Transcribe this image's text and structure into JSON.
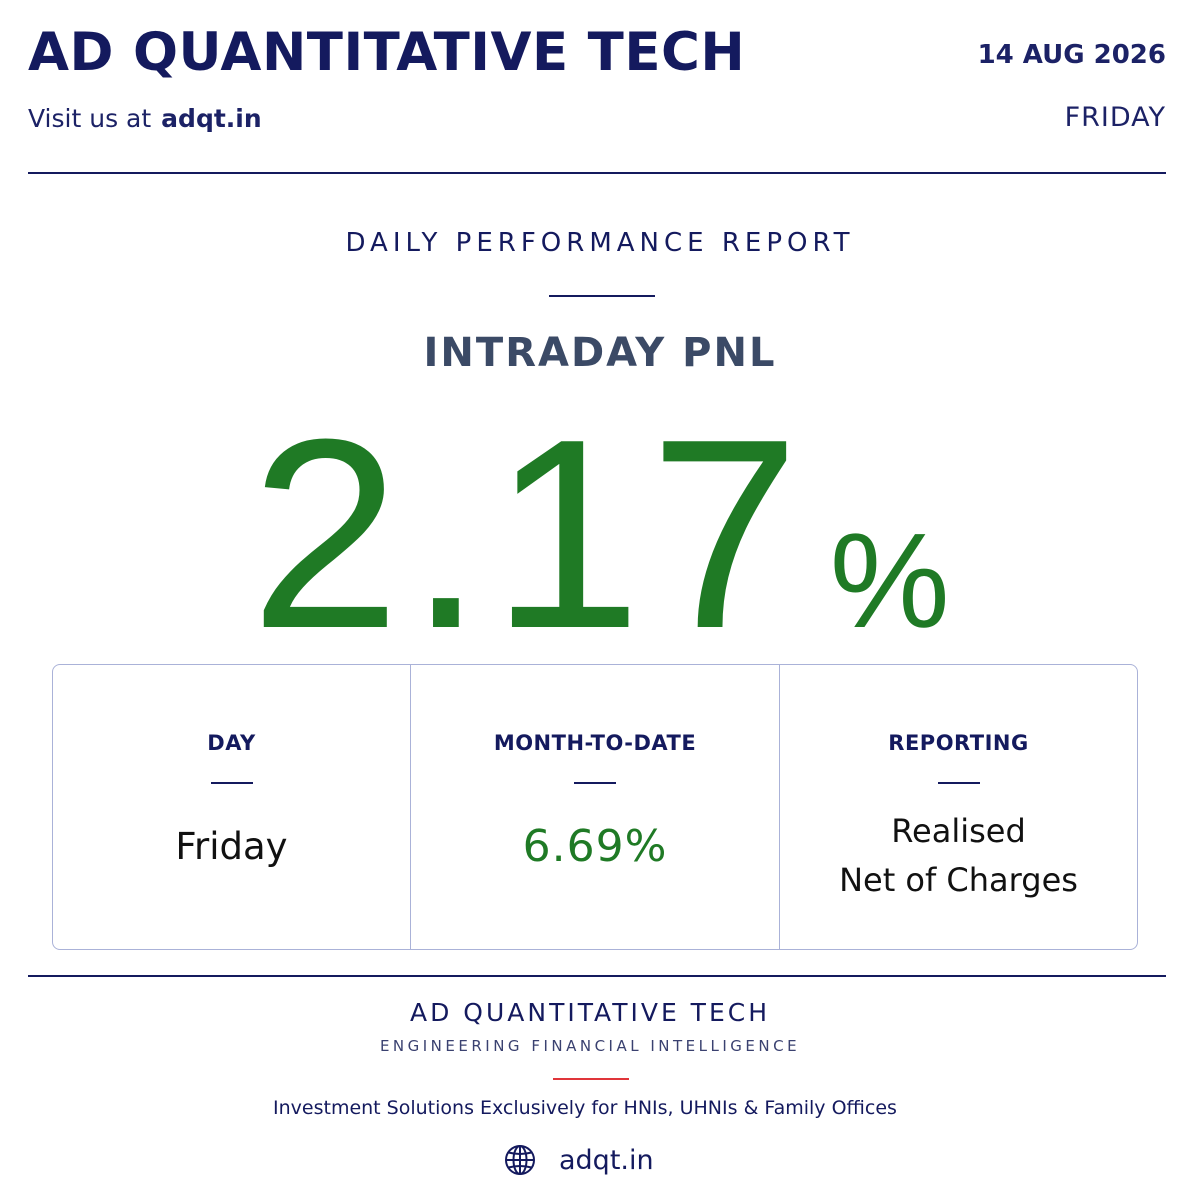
{
  "header": {
    "brand": "AD QUANTITATIVE TECH",
    "visit_prefix": "Visit us at",
    "visit_site": "adqt.in",
    "date": "14 AUG 2026",
    "day": "FRIDAY"
  },
  "report": {
    "title": "DAILY PERFORMANCE REPORT",
    "metric_label": "INTRADAY PNL",
    "value": "2.17",
    "unit": "%"
  },
  "stats": [
    {
      "label": "DAY",
      "value": "Friday"
    },
    {
      "label": "MONTH-TO-DATE",
      "value": "6.69%"
    },
    {
      "label": "REPORTING",
      "value_line1": "Realised",
      "value_line2": "Net of Charges"
    }
  ],
  "footer": {
    "brand": "AD QUANTITATIVE TECH",
    "tagline": "ENGINEERING FINANCIAL INTELLIGENCE",
    "description": "Investment Solutions Exclusively for HNIs, UHNIs & Family Offices",
    "website": "adqt.in",
    "website_icon": "globe-icon"
  },
  "colors": {
    "navy": "#141a5e",
    "positive_green": "#1f7a25",
    "accent_red": "#e0353a",
    "muted_slate": "#3b4a66",
    "box_border": "#aab2d8"
  }
}
